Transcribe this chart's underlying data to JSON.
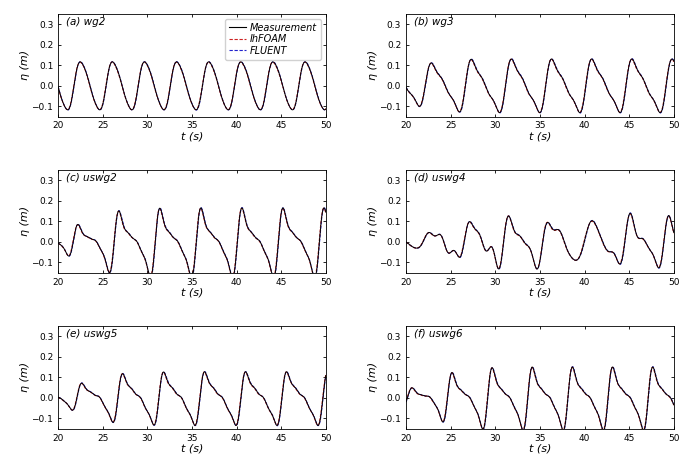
{
  "panels": [
    {
      "label": "(a) wg2",
      "ylim": [
        -0.15,
        0.35
      ],
      "yticks": [
        -0.1,
        0,
        0.1,
        0.2,
        0.3
      ],
      "wave_type": "wg2",
      "T": 3.6,
      "amp": 0.115,
      "phase": -0.3,
      "harmonics": [
        0.15,
        0.04
      ]
    },
    {
      "label": "(b) wg3",
      "ylim": [
        -0.15,
        0.35
      ],
      "yticks": [
        -0.1,
        0,
        0.1,
        0.2,
        0.3
      ],
      "wave_type": "wg3",
      "T": 4.5,
      "amp": 0.11,
      "phase": 0.5,
      "harmonics": [
        0.35,
        0.15
      ]
    },
    {
      "label": "(c) uswg2",
      "ylim": [
        -0.15,
        0.35
      ],
      "yticks": [
        -0.1,
        0,
        0.1,
        0.2,
        0.3
      ],
      "wave_type": "uswg2",
      "T": 4.6,
      "amp": 0.13,
      "phase": 1.8,
      "harmonics": [
        0.45,
        0.25
      ]
    },
    {
      "label": "(d) uswg4",
      "ylim": [
        -0.15,
        0.35
      ],
      "yticks": [
        -0.1,
        0,
        0.1,
        0.2,
        0.3
      ],
      "wave_type": "uswg4",
      "T": 4.5,
      "amp": 0.09,
      "phase": 0.8,
      "harmonics": [
        0.35,
        0.2
      ]
    },
    {
      "label": "(e) uswg5",
      "ylim": [
        -0.15,
        0.35
      ],
      "yticks": [
        -0.1,
        0,
        0.1,
        0.2,
        0.3
      ],
      "wave_type": "uswg5",
      "T": 4.55,
      "amp": 0.11,
      "phase": 1.2,
      "harmonics": [
        0.42,
        0.22
      ]
    },
    {
      "label": "(f) uswg6",
      "ylim": [
        -0.15,
        0.35
      ],
      "yticks": [
        -0.1,
        0,
        0.1,
        0.2,
        0.3
      ],
      "wave_type": "uswg6",
      "T": 4.5,
      "amp": 0.12,
      "phase": 3.3,
      "harmonics": [
        0.44,
        0.24
      ]
    }
  ],
  "xlim": [
    20,
    50
  ],
  "xticks": [
    20,
    25,
    30,
    35,
    40,
    45,
    50
  ],
  "xlabel": "t (s)",
  "ylabel": "η (m)",
  "color_measurement": "#000000",
  "color_ihfoam": "#cc2222",
  "color_fluent": "#2222cc",
  "lw_measurement": 0.7,
  "lw_ihfoam": 0.7,
  "lw_fluent": 0.7,
  "legend_labels": [
    "Measurement",
    "IhFOAM",
    "FLUENT"
  ],
  "legend_fontsize": 7,
  "tick_fontsize": 6.5,
  "label_fontsize": 8,
  "panel_label_fontsize": 7.5
}
